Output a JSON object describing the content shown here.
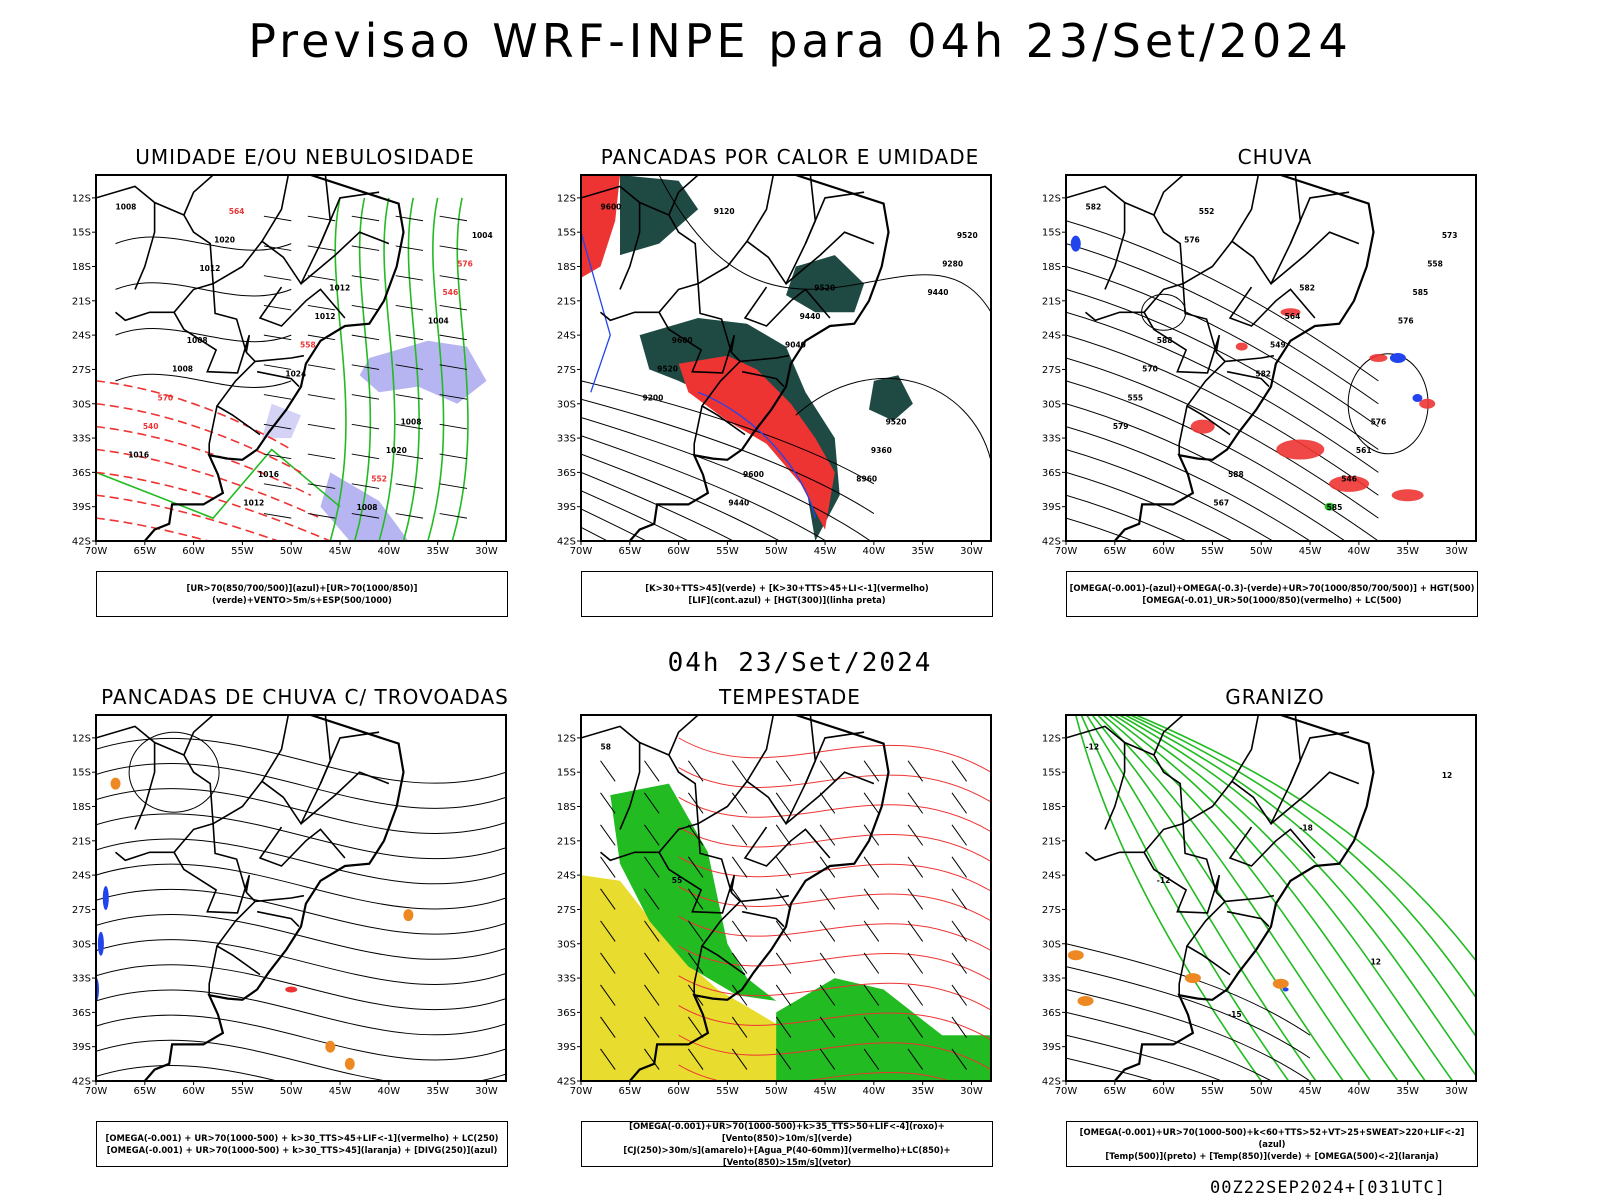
{
  "page": {
    "title": "Previsao WRF-INPE  para 04h 23/Set/2024",
    "subtitle": "04h 23/Set/2024",
    "footer": "00Z22SEP2024+[031UTC]"
  },
  "colors": {
    "green": "#22bb22",
    "red": "#ee3333",
    "blue": "#2244ee",
    "lavender": "#aaa8ee",
    "darkteal": "#1f4a44",
    "yellow": "#e8dc2e",
    "orange": "#ee8822",
    "black": "#000000"
  },
  "axes": {
    "lat_labels": [
      "12S",
      "15S",
      "18S",
      "21S",
      "24S",
      "27S",
      "30S",
      "33S",
      "36S",
      "39S",
      "42S"
    ],
    "lon_labels": [
      "70W",
      "65W",
      "60W",
      "55W",
      "50W",
      "45W",
      "40W",
      "35W",
      "30W"
    ]
  },
  "chart_data": [
    {
      "type": "contour",
      "title": "UMIDADE E/OU NEBULOSIDADE",
      "legend": [
        "[UR>70(850/700/500)](azul)+[UR>70(1000/850)](verde)+VENTO>5m/s+ESP(500/1000)"
      ],
      "contour_labels": [
        "1008",
        "1008",
        "1016",
        "1012",
        "1008",
        "1004",
        "1008",
        "1012",
        "1012",
        "1020",
        "576",
        "570",
        "564",
        "558",
        "552",
        "546",
        "540",
        "1020",
        "1024",
        "1008",
        "1004",
        "1016",
        "1012"
      ],
      "lon_range": [
        -70,
        -28
      ],
      "lat_range": [
        -42,
        -10
      ],
      "fields": [
        "rh_mid_blue",
        "rh_low_green",
        "wind_vectors",
        "thickness_500_1000_red",
        "slp_black"
      ]
    },
    {
      "type": "contour",
      "title": "PANCADAS POR CALOR E UMIDADE",
      "legend": [
        "[K>30+TTS>45](verde) + [K>30+TTS>45+LI<-1](vermelho)",
        "[LIF](cont.azul) + [HGT(300)](linha preta)"
      ],
      "contour_labels": [
        "9600",
        "9600",
        "9600",
        "9520",
        "9520",
        "9520",
        "9520",
        "9440",
        "9440",
        "9360",
        "9280",
        "9200",
        "9120",
        "9040",
        "8960",
        "9440"
      ],
      "lon_range": [
        -70,
        -28
      ],
      "lat_range": [
        -42,
        -10
      ],
      "fields": [
        "k_tts_darkteal",
        "k_tts_li_red",
        "lif_blue",
        "hgt300_black"
      ]
    },
    {
      "type": "contour",
      "title": "CHUVA",
      "legend": [
        "[OMEGA(-0.001)-(azul)+OMEGA(-0.3)-(verde)+UR>70(1000/850/700/500)] + HGT(500)",
        "[OMEGA(-0.01)_UR>50(1000/850)(vermelho) + LC(500)"
      ],
      "contour_labels": [
        "582",
        "588",
        "588",
        "582",
        "576",
        "573",
        "570",
        "567",
        "564",
        "561",
        "558",
        "555",
        "552",
        "549",
        "546",
        "585",
        "579",
        "576",
        "582",
        "585",
        "576"
      ],
      "lon_range": [
        -70,
        -28
      ],
      "lat_range": [
        -42,
        -10
      ],
      "fields": [
        "omega_blue",
        "omega_green",
        "omega_rh_red",
        "hgt500_black",
        "streamlines"
      ]
    },
    {
      "type": "contour",
      "title": "PANCADAS DE CHUVA C/ TROVOADAS",
      "legend": [
        "[OMEGA(-0.001) + UR>70(1000-500) + k>30_TTS>45+LIF<-1](vermelho) + LC(250)",
        "[OMEGA(-0.001) + UR>70(1000-500) + k>30_TTS>45](laranja) + [DIVG(250)](azul)"
      ],
      "contour_labels": [],
      "lon_range": [
        -70,
        -28
      ],
      "lat_range": [
        -42,
        -10
      ],
      "fields": [
        "storms_red",
        "storms_orange",
        "divg250_blue",
        "streamlines250"
      ]
    },
    {
      "type": "contour",
      "title": "TEMPESTADE",
      "legend": [
        "[OMEGA(-0.001)+UR>70(1000-500)+k>35_TTS>50+LIF<-4](roxo)+[Vento(850)>10m/s](verde)",
        "[CJ(250)>30m/s](amarelo)+[Agua_P(40-60mm)](vermelho)+LC(850)+[Vento(850)>15m/s](vetor)"
      ],
      "contour_labels": [
        "58",
        "55"
      ],
      "lon_range": [
        -70,
        -28
      ],
      "lat_range": [
        -42,
        -10
      ],
      "fields": [
        "jet250_yellow",
        "wind850_green",
        "pw_red",
        "wind_vectors"
      ]
    },
    {
      "type": "contour",
      "title": "GRANIZO",
      "legend": [
        "[OMEGA(-0.001)+UR>70(1000-500)+k<60+TTS>52+VT>25+SWEAT>220+LIF<-2](azul)",
        "[Temp(500)](preto) + [Temp(850)](verde) + [OMEGA(500)<-2](laranja)"
      ],
      "contour_labels": [
        "-12",
        "-12",
        "-15",
        "-18",
        "12",
        "12"
      ],
      "lon_range": [
        -70,
        -28
      ],
      "lat_range": [
        -42,
        -10
      ],
      "fields": [
        "temp500_black",
        "temp850_green",
        "omega500_orange",
        "hail_blue"
      ]
    }
  ]
}
